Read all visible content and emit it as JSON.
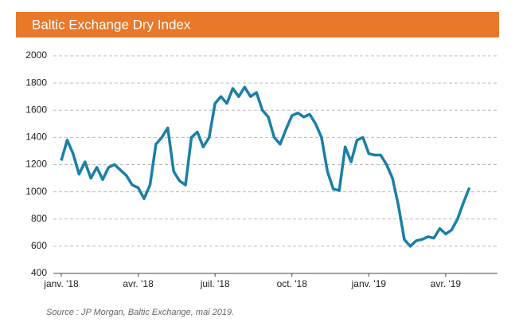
{
  "chart_data": {
    "type": "line",
    "title": "Baltic Exchange Dry Index",
    "source": "Source : JP Morgan, Baltic Exchange, mai 2019.",
    "categories": [
      "janv. '18",
      null,
      null,
      null,
      null,
      null,
      null,
      null,
      null,
      null,
      null,
      null,
      null,
      "avr. '18",
      null,
      null,
      null,
      null,
      null,
      null,
      null,
      null,
      null,
      null,
      null,
      null,
      "juil. '18",
      null,
      null,
      null,
      null,
      null,
      null,
      null,
      null,
      null,
      null,
      null,
      null,
      "oct. '18",
      null,
      null,
      null,
      null,
      null,
      null,
      null,
      null,
      null,
      null,
      null,
      null,
      "janv. '19",
      null,
      null,
      null,
      null,
      null,
      null,
      null,
      null,
      null,
      null,
      null,
      null,
      "avr. '19",
      null,
      null,
      null,
      null
    ],
    "series": [
      {
        "name": "Baltic Exchange Dry Index",
        "color": "#1b7fa8",
        "values": [
          1230,
          1380,
          1280,
          1130,
          1220,
          1100,
          1180,
          1090,
          1180,
          1200,
          1160,
          1120,
          1050,
          1030,
          950,
          1050,
          1350,
          1400,
          1470,
          1150,
          1080,
          1050,
          1400,
          1440,
          1330,
          1400,
          1650,
          1700,
          1650,
          1760,
          1700,
          1770,
          1700,
          1730,
          1600,
          1550,
          1400,
          1350,
          1460,
          1560,
          1580,
          1550,
          1570,
          1500,
          1400,
          1150,
          1020,
          1010,
          1330,
          1220,
          1380,
          1400,
          1280,
          1270,
          1270,
          1200,
          1100,
          900,
          650,
          600,
          640,
          650,
          670,
          660,
          730,
          690,
          720,
          800,
          920,
          1030
        ]
      }
    ],
    "ylim": [
      400,
      2000
    ],
    "yticks": [
      400,
      600,
      800,
      1000,
      1200,
      1400,
      1600,
      1800,
      2000
    ],
    "grid": true,
    "header_color": "#e8782a"
  }
}
